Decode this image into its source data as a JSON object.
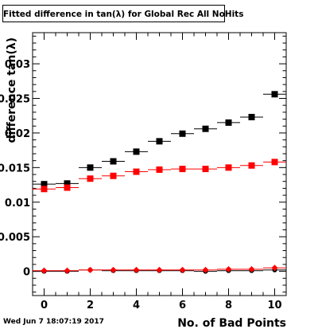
{
  "title": "Fitted difference in tan(λ) for Global Rec All NoHits",
  "timestamp": "Wed Jun  7 18:07:19 2017",
  "colors": {
    "black": "#000000",
    "red": "#ff0000"
  },
  "chart_data": {
    "type": "scatter",
    "title": "Fitted difference in tan(λ) for Global Rec All NoHits",
    "xlabel": "No. of Bad Points",
    "ylabel": "difference tan(λ)",
    "xlim": [
      -0.5,
      10.5
    ],
    "ylim": [
      -0.0035,
      0.0345
    ],
    "x_ticks": [
      0,
      2,
      4,
      6,
      8,
      10
    ],
    "x_tick_labels": [
      "0",
      "2",
      "4",
      "6",
      "8",
      "10"
    ],
    "y_ticks": [
      0,
      0.005,
      0.01,
      0.015,
      0.02,
      0.025,
      0.03
    ],
    "y_tick_labels": [
      "0",
      "0.005",
      "0.01",
      "0.015",
      "0.02",
      "0.025",
      "0.03"
    ],
    "grid": false,
    "legend": false,
    "series": [
      {
        "color": "#000000",
        "marker": "square",
        "x": [
          0,
          1,
          2,
          3,
          4,
          5,
          6,
          7,
          8,
          9,
          10
        ],
        "values": [
          0.0126,
          0.0127,
          0.015,
          0.0159,
          0.0173,
          0.0188,
          0.0199,
          0.0206,
          0.0215,
          0.0223,
          0.0256
        ]
      },
      {
        "color": "#ff0000",
        "marker": "square",
        "x": [
          0,
          1,
          2,
          3,
          4,
          5,
          6,
          7,
          8,
          9,
          10
        ],
        "values": [
          0.0119,
          0.0121,
          0.0134,
          0.0138,
          0.0144,
          0.0147,
          0.0148,
          0.0148,
          0.015,
          0.0153,
          0.0158
        ]
      },
      {
        "color": "#000000",
        "marker": "circle",
        "x": [
          0,
          1,
          2,
          3,
          4,
          5,
          6,
          7,
          8,
          9,
          10
        ],
        "values": [
          0.0,
          0.0,
          0.0002,
          0.0001,
          0.0001,
          0.0001,
          0.0001,
          0.0,
          0.0001,
          0.0001,
          0.0002
        ]
      },
      {
        "color": "#ff0000",
        "marker": "diamond",
        "x": [
          0,
          1,
          2,
          3,
          4,
          5,
          6,
          7,
          8,
          9,
          10
        ],
        "values": [
          0.0001,
          0.0001,
          0.0002,
          0.0002,
          0.0002,
          0.0002,
          0.0002,
          0.0002,
          0.0003,
          0.0003,
          0.0005
        ]
      }
    ]
  }
}
